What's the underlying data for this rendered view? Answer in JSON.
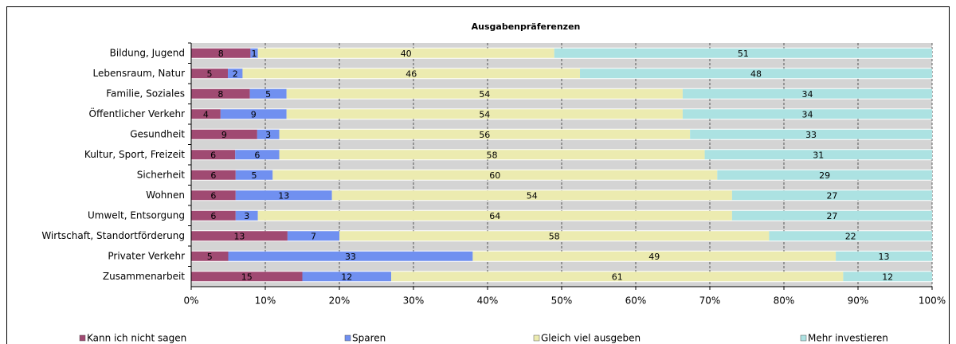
{
  "chart_data": {
    "type": "bar",
    "orientation": "horizontal",
    "stacking": "percent",
    "title": "Ausgabenpräferenzen",
    "categories": [
      "Bildung, Jugend",
      "Lebensraum, Natur",
      "Familie, Soziales",
      "Öffentlicher Verkehr",
      "Gesundheit",
      "Kultur, Sport, Freizeit",
      "Sicherheit",
      "Wohnen",
      "Umwelt, Entsorgung",
      "Wirtschaft, Standortförderung",
      "Privater Verkehr",
      "Zusammenarbeit"
    ],
    "series": [
      {
        "name": "Kann ich nicht sagen",
        "color": "#a04a72",
        "values": [
          8,
          5,
          8,
          4,
          9,
          6,
          6,
          6,
          6,
          13,
          5,
          15
        ]
      },
      {
        "name": "Sparen",
        "color": "#7090f0",
        "values": [
          1,
          2,
          5,
          9,
          3,
          6,
          5,
          13,
          3,
          7,
          33,
          12
        ]
      },
      {
        "name": "Gleich viel ausgeben",
        "color": "#ecebb0",
        "values": [
          40,
          46,
          54,
          54,
          56,
          58,
          60,
          54,
          64,
          58,
          49,
          61
        ]
      },
      {
        "name": "Mehr investieren",
        "color": "#ace2e2",
        "values": [
          51,
          48,
          34,
          34,
          33,
          31,
          29,
          27,
          27,
          22,
          13,
          12
        ]
      }
    ],
    "xlim": [
      0,
      100
    ],
    "xticks": [
      {
        "value": 0,
        "label": "0%"
      },
      {
        "value": 10,
        "label": "10%"
      },
      {
        "value": 20,
        "label": "20%"
      },
      {
        "value": 30,
        "label": "30%"
      },
      {
        "value": 40,
        "label": "40%"
      },
      {
        "value": 50,
        "label": "50%"
      },
      {
        "value": 60,
        "label": "60%"
      },
      {
        "value": 70,
        "label": "70%"
      },
      {
        "value": 80,
        "label": "80%"
      },
      {
        "value": 90,
        "label": "90%"
      },
      {
        "value": 100,
        "label": "100%"
      }
    ],
    "grid": true,
    "legend": "bottom"
  }
}
